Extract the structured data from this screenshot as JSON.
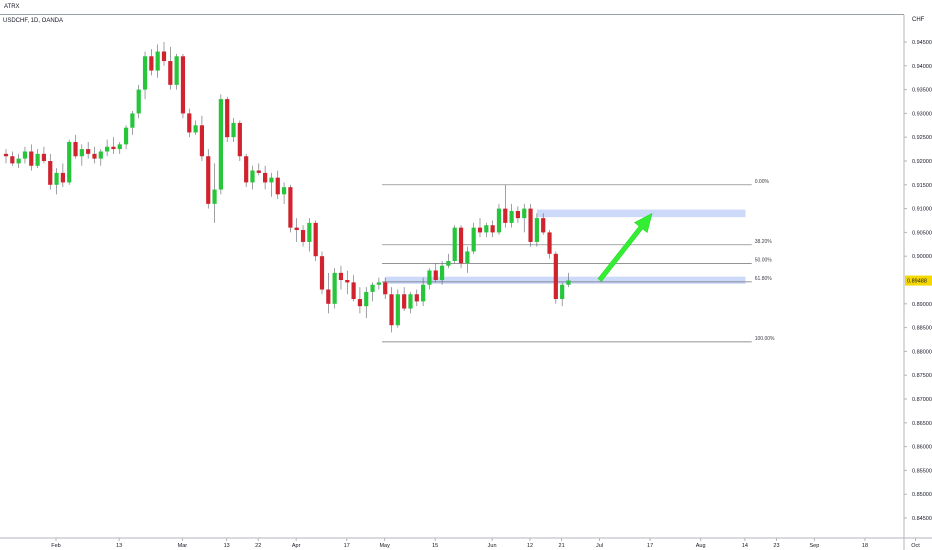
{
  "header": {
    "label": "ATRX",
    "title": "USDCHF, 1D, OANDA"
  },
  "chart_data": {
    "type": "candlestick",
    "currency": "CHF",
    "current_price": 0.89488,
    "colors": {
      "up": "#26c63a",
      "down": "#d0232e",
      "zone": "#c6d5f7",
      "arrow": "#33ee33",
      "price_tag": "#f5d800"
    },
    "yticks": [
      {
        "value": 0.945,
        "label": "0.94500"
      },
      {
        "value": 0.94,
        "label": "0.94000"
      },
      {
        "value": 0.935,
        "label": "0.93500"
      },
      {
        "value": 0.93,
        "label": "0.93000"
      },
      {
        "value": 0.925,
        "label": "0.92500"
      },
      {
        "value": 0.92,
        "label": "0.92000"
      },
      {
        "value": 0.915,
        "label": "0.91500"
      },
      {
        "value": 0.91,
        "label": "0.91000"
      },
      {
        "value": 0.905,
        "label": "0.90500"
      },
      {
        "value": 0.9,
        "label": "0.90000"
      },
      {
        "value": 0.89,
        "label": "0.89000"
      },
      {
        "value": 0.885,
        "label": "0.88500"
      },
      {
        "value": 0.88,
        "label": "0.88000"
      },
      {
        "value": 0.875,
        "label": "0.87500"
      },
      {
        "value": 0.87,
        "label": "0.87000"
      },
      {
        "value": 0.865,
        "label": "0.86500"
      },
      {
        "value": 0.86,
        "label": "0.86000"
      },
      {
        "value": 0.855,
        "label": "0.85500"
      },
      {
        "value": 0.85,
        "label": "0.85000"
      },
      {
        "value": 0.845,
        "label": "0.84500"
      }
    ],
    "xticks": [
      {
        "index": 0,
        "label": "Feb"
      },
      {
        "index": 10,
        "label": "13"
      },
      {
        "index": 20,
        "label": "Mar"
      },
      {
        "index": 27,
        "label": "13"
      },
      {
        "index": 32,
        "label": "22"
      },
      {
        "index": 38,
        "label": "Apr"
      },
      {
        "index": 46,
        "label": "17"
      },
      {
        "index": 52,
        "label": "May"
      },
      {
        "index": 60,
        "label": "15"
      },
      {
        "index": 69,
        "label": "Jun"
      },
      {
        "index": 75,
        "label": "12"
      },
      {
        "index": 80,
        "label": "21"
      },
      {
        "index": 86,
        "label": "Jul"
      },
      {
        "index": 94,
        "label": "17"
      },
      {
        "index": 102,
        "label": "Aug"
      },
      {
        "index": 109,
        "label": "14"
      },
      {
        "index": 114,
        "label": "23"
      },
      {
        "index": 120,
        "label": "Sep"
      },
      {
        "index": 128,
        "label": "18"
      },
      {
        "index": 136,
        "label": "Oct"
      }
    ],
    "candles": [
      [
        0.9215,
        0.9225,
        0.9195,
        0.921
      ],
      [
        0.921,
        0.922,
        0.919,
        0.9195
      ],
      [
        0.9195,
        0.9215,
        0.9185,
        0.9205
      ],
      [
        0.9205,
        0.923,
        0.9195,
        0.922
      ],
      [
        0.922,
        0.9235,
        0.918,
        0.919
      ],
      [
        0.919,
        0.9225,
        0.9185,
        0.9215
      ],
      [
        0.9215,
        0.923,
        0.9195,
        0.92
      ],
      [
        0.92,
        0.9215,
        0.914,
        0.915
      ],
      [
        0.915,
        0.9185,
        0.913,
        0.9175
      ],
      [
        0.9175,
        0.9195,
        0.9145,
        0.9155
      ],
      [
        0.9155,
        0.9245,
        0.915,
        0.924
      ],
      [
        0.924,
        0.9255,
        0.9205,
        0.921
      ],
      [
        0.921,
        0.9235,
        0.919,
        0.9225
      ],
      [
        0.9225,
        0.924,
        0.9205,
        0.9215
      ],
      [
        0.9215,
        0.923,
        0.9195,
        0.9205
      ],
      [
        0.9205,
        0.9225,
        0.919,
        0.922
      ],
      [
        0.922,
        0.9245,
        0.921,
        0.923
      ],
      [
        0.923,
        0.925,
        0.9215,
        0.9225
      ],
      [
        0.9225,
        0.924,
        0.9215,
        0.9235
      ],
      [
        0.9235,
        0.9275,
        0.9225,
        0.927
      ],
      [
        0.927,
        0.9305,
        0.9255,
        0.93
      ],
      [
        0.93,
        0.936,
        0.929,
        0.935
      ],
      [
        0.935,
        0.943,
        0.933,
        0.942
      ],
      [
        0.942,
        0.9435,
        0.938,
        0.939
      ],
      [
        0.939,
        0.9445,
        0.9375,
        0.943
      ],
      [
        0.943,
        0.945,
        0.94,
        0.941
      ],
      [
        0.941,
        0.944,
        0.935,
        0.936
      ],
      [
        0.936,
        0.9425,
        0.935,
        0.942
      ],
      [
        0.942,
        0.9425,
        0.929,
        0.93
      ],
      [
        0.93,
        0.931,
        0.925,
        0.926
      ],
      [
        0.926,
        0.9285,
        0.9255,
        0.9275
      ],
      [
        0.9275,
        0.9295,
        0.92,
        0.921
      ],
      [
        0.921,
        0.9225,
        0.91,
        0.911
      ],
      [
        0.911,
        0.9195,
        0.907,
        0.914
      ],
      [
        0.914,
        0.934,
        0.913,
        0.933
      ],
      [
        0.933,
        0.9335,
        0.924,
        0.925
      ],
      [
        0.925,
        0.929,
        0.924,
        0.928
      ],
      [
        0.928,
        0.9285,
        0.92,
        0.921
      ],
      [
        0.921,
        0.9215,
        0.9145,
        0.9155
      ],
      [
        0.9155,
        0.919,
        0.914,
        0.918
      ],
      [
        0.918,
        0.9195,
        0.917,
        0.9175
      ],
      [
        0.9175,
        0.919,
        0.914,
        0.9155
      ],
      [
        0.9155,
        0.9175,
        0.9125,
        0.9165
      ],
      [
        0.9165,
        0.918,
        0.912,
        0.913
      ],
      [
        0.913,
        0.9155,
        0.911,
        0.9145
      ],
      [
        0.9145,
        0.915,
        0.905,
        0.906
      ],
      [
        0.906,
        0.908,
        0.903,
        0.9055
      ],
      [
        0.9055,
        0.9065,
        0.902,
        0.903
      ],
      [
        0.903,
        0.908,
        0.901,
        0.907
      ],
      [
        0.907,
        0.9075,
        0.899,
        0.9
      ],
      [
        0.9,
        0.901,
        0.892,
        0.893
      ],
      [
        0.893,
        0.8965,
        0.888,
        0.89
      ],
      [
        0.89,
        0.8975,
        0.889,
        0.8965
      ],
      [
        0.8965,
        0.898,
        0.893,
        0.895
      ],
      [
        0.895,
        0.897,
        0.892,
        0.8945
      ],
      [
        0.8945,
        0.896,
        0.8905,
        0.891
      ],
      [
        0.891,
        0.8935,
        0.888,
        0.8895
      ],
      [
        0.8895,
        0.8935,
        0.887,
        0.8925
      ],
      [
        0.8925,
        0.8945,
        0.8905,
        0.894
      ],
      [
        0.894,
        0.8955,
        0.893,
        0.8945
      ],
      [
        0.8945,
        0.8955,
        0.891,
        0.892
      ],
      [
        0.892,
        0.8935,
        0.884,
        0.8855
      ],
      [
        0.8855,
        0.893,
        0.885,
        0.892
      ],
      [
        0.892,
        0.8935,
        0.8885,
        0.889
      ],
      [
        0.889,
        0.8925,
        0.888,
        0.892
      ],
      [
        0.892,
        0.893,
        0.8895,
        0.8905
      ],
      [
        0.8905,
        0.8955,
        0.8895,
        0.894
      ],
      [
        0.894,
        0.8975,
        0.893,
        0.897
      ],
      [
        0.897,
        0.8985,
        0.8945,
        0.895
      ],
      [
        0.895,
        0.899,
        0.894,
        0.898
      ],
      [
        0.898,
        0.9005,
        0.8975,
        0.899
      ],
      [
        0.899,
        0.9065,
        0.8985,
        0.906
      ],
      [
        0.906,
        0.9065,
        0.8975,
        0.8985
      ],
      [
        0.8985,
        0.902,
        0.8965,
        0.901
      ],
      [
        0.901,
        0.907,
        0.9005,
        0.906
      ],
      [
        0.906,
        0.908,
        0.904,
        0.905
      ],
      [
        0.905,
        0.907,
        0.904,
        0.9065
      ],
      [
        0.9065,
        0.9075,
        0.904,
        0.905
      ],
      [
        0.905,
        0.911,
        0.9045,
        0.91
      ],
      [
        0.91,
        0.915,
        0.906,
        0.907
      ],
      [
        0.907,
        0.911,
        0.906,
        0.9095
      ],
      [
        0.9095,
        0.9105,
        0.907,
        0.908
      ],
      [
        0.908,
        0.911,
        0.905,
        0.91
      ],
      [
        0.91,
        0.911,
        0.902,
        0.903
      ],
      [
        0.903,
        0.909,
        0.902,
        0.908
      ],
      [
        0.908,
        0.909,
        0.9045,
        0.905
      ],
      [
        0.905,
        0.9055,
        0.8995,
        0.9005
      ],
      [
        0.9005,
        0.901,
        0.89,
        0.891
      ],
      [
        0.891,
        0.8945,
        0.8895,
        0.894
      ],
      [
        0.894,
        0.8965,
        0.8935,
        0.8949
      ]
    ],
    "fib": {
      "high": 0.915,
      "low": 0.882,
      "levels": [
        {
          "ratio": 0.0,
          "label": "0.00%"
        },
        {
          "ratio": 0.382,
          "label": "38.20%"
        },
        {
          "ratio": 0.5,
          "label": "50.00%"
        },
        {
          "ratio": 0.618,
          "label": "61.80%"
        },
        {
          "ratio": 1.0,
          "label": "100.00%"
        }
      ]
    },
    "zones": [
      {
        "name": "resistance-zone",
        "from_index": 84,
        "to_index": 117,
        "low": 0.9082,
        "high": 0.9098
      },
      {
        "name": "support-zone",
        "from_index": 60,
        "to_index": 117,
        "low": 0.8942,
        "high": 0.8957
      }
    ],
    "arrow": {
      "from_index": 93,
      "from_price": 0.895,
      "to_index": 100,
      "to_price": 0.909
    }
  }
}
